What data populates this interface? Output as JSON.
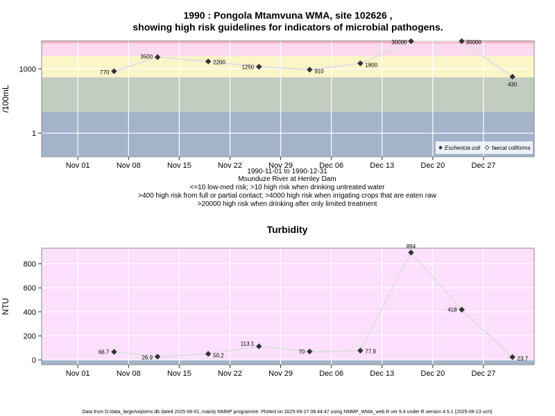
{
  "footer": "Data from D:/data_large/wq/wms.db dated 2025-08-01, mainly NMMP programme. Plotted on 2025-09-27 08:44:47 using NMMP_WMA_web.R ver 9.4 under R version 4.5.1 (2025-06-13 ucrt)",
  "colors": {
    "risk_red": "#f7b6c6",
    "risk_pink": "#fcd9ee",
    "risk_yellow": "#fcf5c8",
    "risk_green": "#c3ccc1",
    "risk_blue": "#a3b3ca",
    "turb_pink": "#fde0fd",
    "turb_blue": "#a3b3ca",
    "line": "#e0e0e0",
    "marker": "#333333"
  },
  "chart_data": [
    {
      "type": "line",
      "title": "1990 : Pongola Mtamvuna WMA, site 102626 ,",
      "subtitle": "showing high risk guidelines for indicators of microbial pathogens.",
      "ylabel": "/100mL",
      "yscale": "log",
      "ylim": [
        0.08,
        20000
      ],
      "xlim": [
        "1990-10-27",
        "1991-01-03"
      ],
      "x_ticks": [
        {
          "date": "1990-11-01",
          "label": "Nov 01"
        },
        {
          "date": "1990-11-08",
          "label": "Nov 08"
        },
        {
          "date": "1990-11-15",
          "label": "Nov 15"
        },
        {
          "date": "1990-11-22",
          "label": "Nov 22"
        },
        {
          "date": "1990-11-29",
          "label": "Nov 29"
        },
        {
          "date": "1990-12-06",
          "label": "Dec 06"
        },
        {
          "date": "1990-12-13",
          "label": "Dec 13"
        },
        {
          "date": "1990-12-20",
          "label": "Dec 20"
        },
        {
          "date": "1990-12-27",
          "label": "Dec 27"
        }
      ],
      "y_ticks": [
        {
          "value": 1,
          "label": "1"
        },
        {
          "value": 1000,
          "label": "1000"
        }
      ],
      "notes": [
        "1990-11-01 to 1990-12-31",
        "Msunduze River at Henley Dam",
        "<=10 low-med risk; >10 high risk when drinking untreated water",
        ">400 high risk from full or partial contact; >4000 high risk when irrigating crops that are eaten raw",
        ">20000 high risk when drinking after only limited treatment"
      ],
      "legend": {
        "placement": "bottom-right",
        "entries": [
          "Eschericia coli",
          "faecal coliforms"
        ]
      },
      "bands": [
        {
          "from": 0.08,
          "to": 10,
          "color": "risk_blue"
        },
        {
          "from": 10,
          "to": 400,
          "color": "risk_green"
        },
        {
          "from": 400,
          "to": 4000,
          "color": "risk_yellow"
        },
        {
          "from": 4000,
          "to": 15000,
          "color": "risk_pink"
        },
        {
          "from": 15000,
          "to": 20000,
          "color": "risk_red"
        }
      ],
      "series": [
        {
          "name": "Eschericia coli",
          "x": [
            "1990-11-06",
            "1990-11-12",
            "1990-11-19",
            "1990-11-26",
            "1990-12-03",
            "1990-12-10",
            "1990-12-17",
            "1990-12-24",
            "1990-12-31"
          ],
          "values": [
            770,
            3500,
            2200,
            1250,
            910,
            1800,
            30000,
            30000,
            430
          ],
          "labels": [
            "770",
            "3500",
            "2200",
            "1250",
            "910",
            "1800",
            "30000",
            "30000",
            "430"
          ]
        }
      ]
    },
    {
      "type": "line",
      "title": "Turbidity",
      "ylabel": "NTU",
      "ylim": [
        -40,
        930
      ],
      "xlim": [
        "1990-10-27",
        "1991-01-03"
      ],
      "x_ticks": [
        {
          "date": "1990-11-01",
          "label": "Nov 01"
        },
        {
          "date": "1990-11-08",
          "label": "Nov 08"
        },
        {
          "date": "1990-11-15",
          "label": "Nov 15"
        },
        {
          "date": "1990-11-22",
          "label": "Nov 22"
        },
        {
          "date": "1990-11-29",
          "label": "Nov 29"
        },
        {
          "date": "1990-12-06",
          "label": "Dec 06"
        },
        {
          "date": "1990-12-13",
          "label": "Dec 13"
        },
        {
          "date": "1990-12-20",
          "label": "Dec 20"
        },
        {
          "date": "1990-12-27",
          "label": "Dec 27"
        }
      ],
      "y_ticks": [
        {
          "value": 0,
          "label": "0"
        },
        {
          "value": 200,
          "label": "200"
        },
        {
          "value": 400,
          "label": "400"
        },
        {
          "value": 600,
          "label": "600"
        },
        {
          "value": 800,
          "label": "800"
        }
      ],
      "bands": [
        {
          "from": -40,
          "to": 0,
          "color": "turb_blue"
        },
        {
          "from": 0,
          "to": 930,
          "color": "turb_pink"
        }
      ],
      "series": [
        {
          "x": [
            "1990-11-06",
            "1990-11-12",
            "1990-11-19",
            "1990-11-26",
            "1990-12-03",
            "1990-12-10",
            "1990-12-17",
            "1990-12-24",
            "1990-12-31"
          ],
          "values": [
            66.7,
            26.9,
            50.2,
            113.1,
            70,
            77.9,
            894,
            418,
            23.7
          ],
          "labels": [
            "66.7",
            "26.9",
            "50.2",
            "113.1",
            "70",
            "77.9",
            "894",
            "418",
            "23.7"
          ]
        }
      ]
    }
  ]
}
